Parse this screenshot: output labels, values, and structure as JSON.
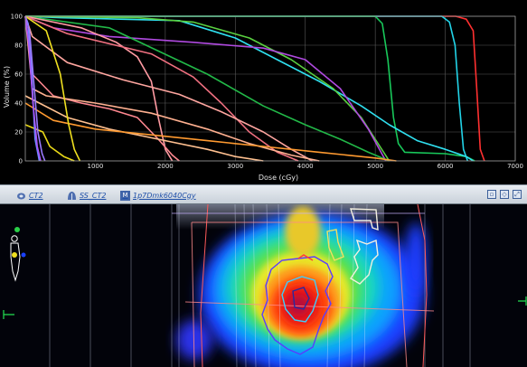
{
  "chart_data": {
    "type": "line",
    "title": "",
    "xlabel": "Dose (cGy)",
    "ylabel": "Volume (%)",
    "xlim": [
      0,
      7000
    ],
    "ylim": [
      0,
      100
    ],
    "x_ticks": [
      "1000",
      "2000",
      "3000",
      "4000",
      "5000",
      "6000",
      "7000"
    ],
    "y_ticks": [
      "0",
      "20",
      "40",
      "60",
      "80",
      "100"
    ],
    "grid": true,
    "series": [
      {
        "color": "#ff3030",
        "x": [
          0,
          6150,
          6300,
          6400,
          6450,
          6500,
          6560
        ],
        "y": [
          100,
          100,
          98,
          90,
          50,
          8,
          0
        ]
      },
      {
        "color": "#22d4e8",
        "x": [
          0,
          5950,
          6060,
          6140,
          6200,
          6260,
          6320
        ],
        "y": [
          100,
          100,
          96,
          80,
          40,
          8,
          0
        ]
      },
      {
        "color": "#18c85a",
        "x": [
          0,
          5000,
          5100,
          5180,
          5260,
          5330,
          5420,
          6000,
          6300,
          6420
        ],
        "y": [
          100,
          100,
          95,
          70,
          30,
          12,
          6,
          5,
          3,
          0
        ]
      },
      {
        "color": "#30e0f0",
        "x": [
          0,
          500,
          2200,
          3000,
          3600,
          4200,
          4800,
          5200,
          5600,
          6000,
          6300,
          6400
        ],
        "y": [
          100,
          99,
          97,
          85,
          70,
          55,
          38,
          25,
          14,
          8,
          3,
          0
        ]
      },
      {
        "color": "#5ad040",
        "x": [
          0,
          1600,
          2400,
          3200,
          3800,
          4400,
          4800,
          5000,
          5200
        ],
        "y": [
          100,
          99,
          96,
          85,
          70,
          50,
          30,
          15,
          0
        ]
      },
      {
        "color": "#b04ae0",
        "x": [
          0,
          400,
          1200,
          2400,
          3400,
          4000,
          4500,
          4900,
          5150
        ],
        "y": [
          100,
          92,
          86,
          82,
          78,
          70,
          50,
          22,
          0
        ]
      },
      {
        "color": "#22b848",
        "x": [
          0,
          1200,
          2600,
          3400,
          4000,
          4500,
          4900,
          5200
        ],
        "y": [
          100,
          92,
          60,
          38,
          25,
          15,
          6,
          0
        ]
      },
      {
        "color": "#ff9aa2",
        "x": [
          0,
          800,
          1300,
          1600,
          1800,
          1900,
          2000,
          2100
        ],
        "y": [
          100,
          92,
          82,
          72,
          55,
          30,
          8,
          0
        ]
      },
      {
        "color": "#f07080",
        "x": [
          0,
          600,
          1800,
          2400,
          2800,
          3200,
          3600,
          3900
        ],
        "y": [
          100,
          88,
          74,
          58,
          40,
          20,
          6,
          0
        ]
      },
      {
        "color": "#ffa6a0",
        "x": [
          0,
          100,
          600,
          1400,
          2200,
          2800,
          3400,
          3800,
          4100
        ],
        "y": [
          100,
          86,
          68,
          56,
          46,
          34,
          20,
          8,
          0
        ]
      },
      {
        "color": "#ff8890",
        "x": [
          0,
          100,
          400,
          800,
          1200,
          1600,
          1900,
          2100,
          2200
        ],
        "y": [
          100,
          60,
          45,
          40,
          36,
          30,
          15,
          4,
          0
        ]
      },
      {
        "color": "#ffb090",
        "x": [
          0,
          100,
          300,
          1000,
          1800,
          2600,
          3200,
          3800,
          4200
        ],
        "y": [
          100,
          50,
          45,
          40,
          33,
          22,
          12,
          4,
          0
        ]
      },
      {
        "color": "#ffc090",
        "x": [
          0,
          200,
          600,
          1200,
          2000,
          2600,
          3000,
          3400
        ],
        "y": [
          45,
          40,
          30,
          22,
          14,
          8,
          3,
          0
        ]
      },
      {
        "color": "#ff9a30",
        "x": [
          0,
          400,
          1000,
          1800,
          2600,
          3400,
          4200,
          5000,
          5300
        ],
        "y": [
          40,
          28,
          22,
          18,
          14,
          10,
          6,
          2,
          0
        ]
      },
      {
        "color": "#f0e020",
        "x": [
          0,
          300,
          500,
          620,
          700,
          780
        ],
        "y": [
          100,
          90,
          60,
          25,
          8,
          0
        ]
      },
      {
        "color": "#e8d818",
        "x": [
          0,
          250,
          350,
          550,
          700
        ],
        "y": [
          25,
          20,
          10,
          3,
          0
        ]
      },
      {
        "color": "#6a88ff",
        "x": [
          0,
          40,
          90,
          140,
          200
        ],
        "y": [
          100,
          95,
          60,
          15,
          0
        ]
      },
      {
        "color": "#9a7aff",
        "x": [
          0,
          60,
          120,
          180,
          240,
          280
        ],
        "y": [
          100,
          90,
          55,
          20,
          5,
          0
        ]
      },
      {
        "color": "#aa55ff",
        "x": [
          0,
          50,
          110,
          170,
          220
        ],
        "y": [
          100,
          80,
          40,
          10,
          0
        ]
      }
    ]
  },
  "toolbar": {
    "item1_label": "CT2",
    "item2_label": "SS_CT2",
    "item3_label": "1p7Dmk6040Cgy",
    "item3_icon_letter": "M"
  }
}
